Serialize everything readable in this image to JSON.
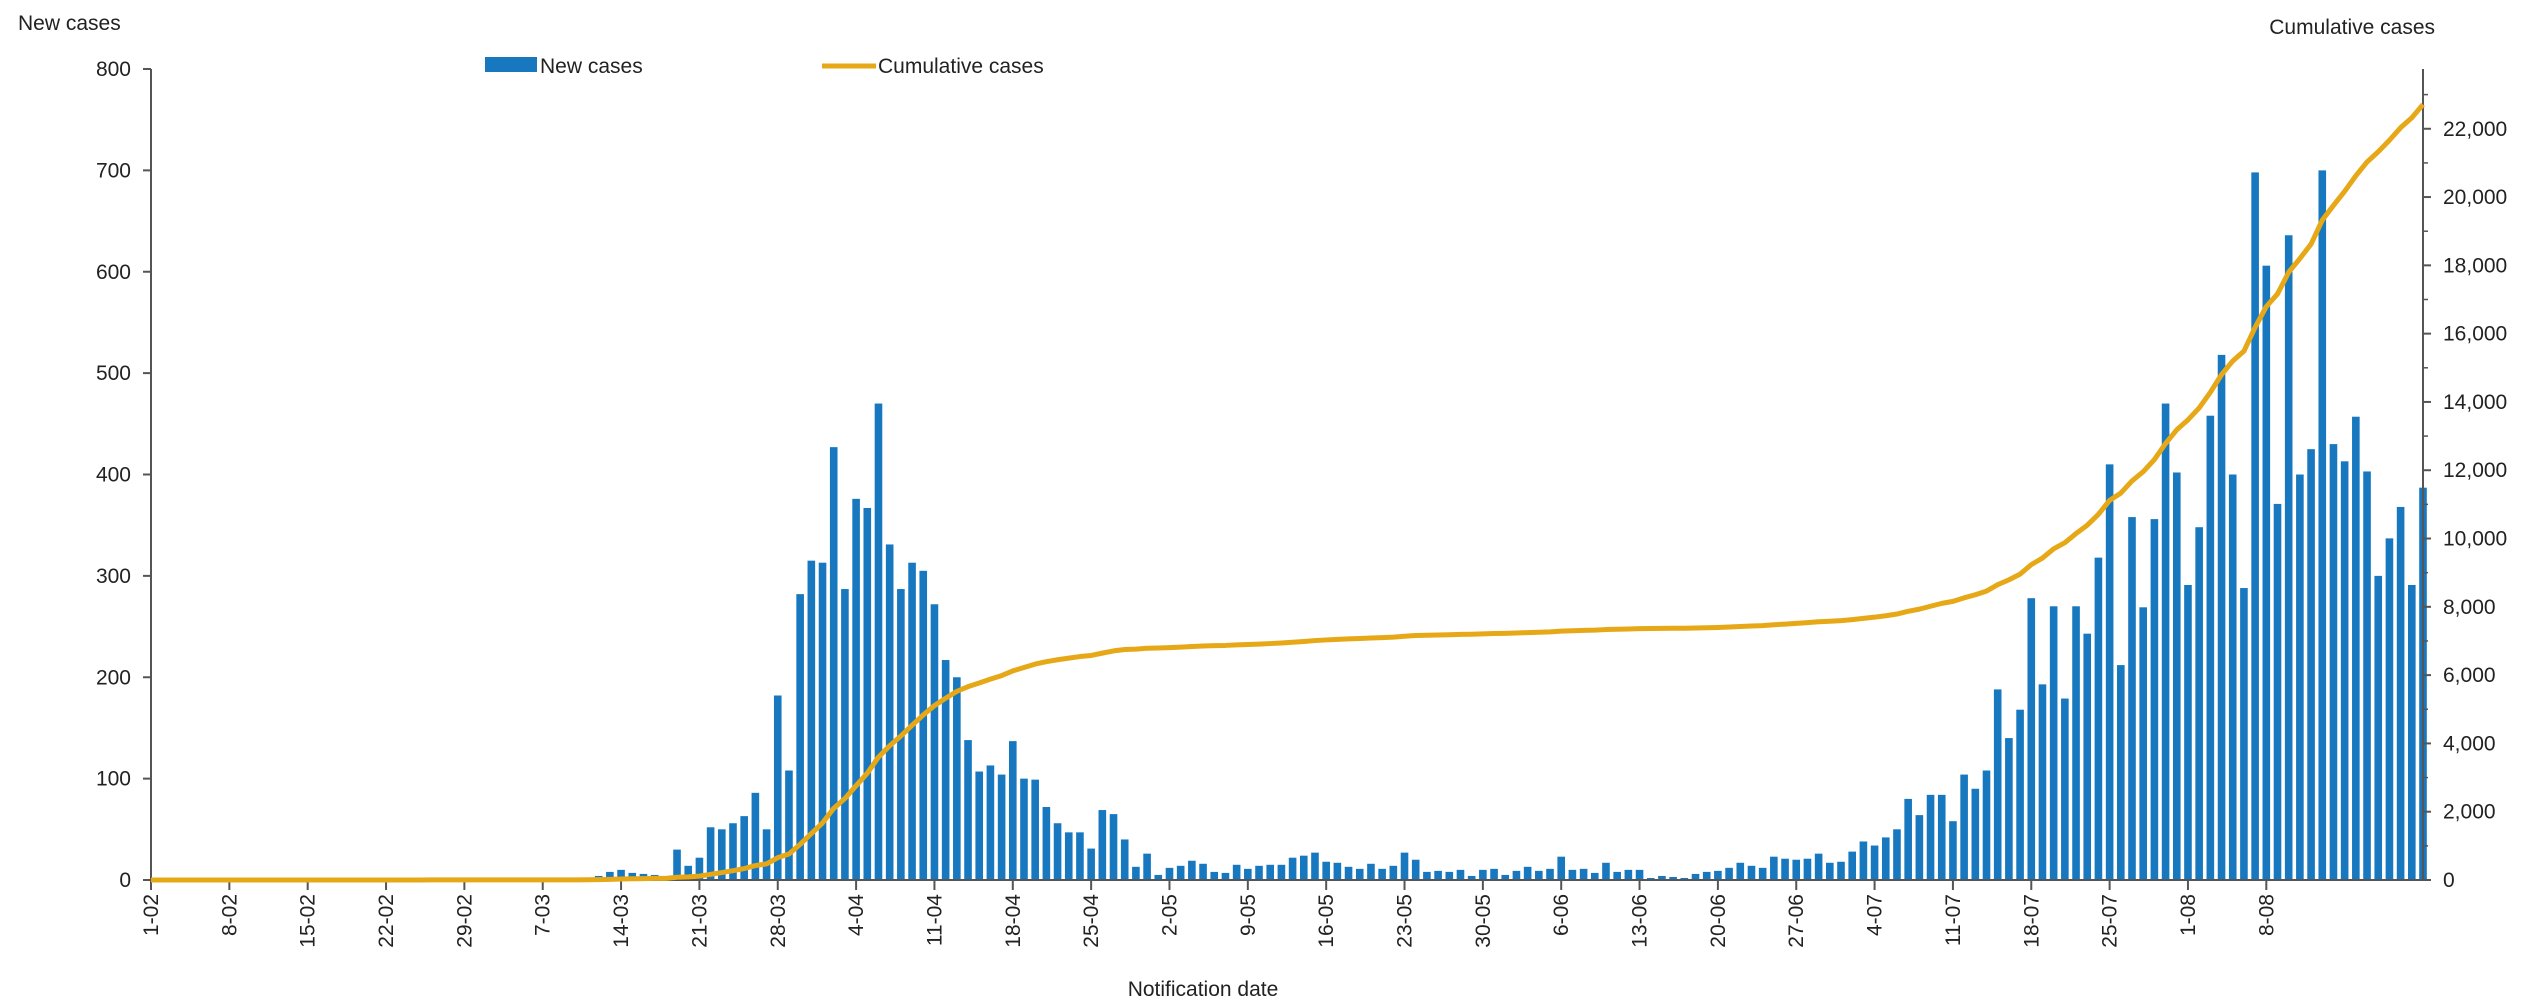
{
  "chart_data": {
    "type": "bar+line",
    "title": "",
    "xlabel": "Notification date",
    "ylabel_left": "New cases",
    "ylabel_right": "Cumulative cases",
    "ylim_left": [
      0,
      800
    ],
    "ylim_right": [
      0,
      23750
    ],
    "yticks_left": [
      "0",
      "100",
      "200",
      "300",
      "400",
      "500",
      "600",
      "700",
      "800"
    ],
    "yticks_right": [
      "0",
      "2,000",
      "4,000",
      "6,000",
      "8,000",
      "10,000",
      "12,000",
      "14,000",
      "16,000",
      "18,000",
      "20,000",
      "22,000"
    ],
    "x_tick_labels": [
      "1-02",
      "8-02",
      "15-02",
      "22-02",
      "29-02",
      "7-03",
      "14-03",
      "21-03",
      "28-03",
      "4-04",
      "11-04",
      "18-04",
      "25-04",
      "2-05",
      "9-05",
      "16-05",
      "23-05",
      "30-05",
      "6-06",
      "13-06",
      "20-06",
      "27-06",
      "4-07",
      "11-07",
      "18-07",
      "25-07",
      "1-08",
      "8-08"
    ],
    "x_start": "2020-02-01",
    "x_end": "2020-08-14",
    "grid": false,
    "legend": {
      "placement": "top-center",
      "entries": [
        "New cases",
        "Cumulative cases"
      ]
    },
    "colors": {
      "bar": "#1878bf",
      "line": "#e6a817",
      "axis": "#555555"
    },
    "series": [
      {
        "name": "New cases",
        "type": "bar",
        "axis": "left",
        "values": [
          0,
          0,
          0,
          0,
          0,
          0,
          0,
          0,
          0,
          0,
          0,
          0,
          0,
          0,
          0,
          0,
          0,
          0,
          0,
          0,
          0,
          0,
          0,
          0,
          0,
          2,
          0,
          0,
          0,
          0,
          0,
          0,
          0,
          0,
          0,
          0,
          0,
          1,
          1,
          2,
          4,
          8,
          10,
          7,
          6,
          5,
          3,
          30,
          14,
          22,
          52,
          50,
          56,
          63,
          86,
          50,
          182,
          108,
          282,
          315,
          313,
          427,
          287,
          376,
          367,
          470,
          331,
          287,
          313,
          305,
          272,
          217,
          200,
          138,
          107,
          113,
          104,
          137,
          100,
          99,
          72,
          56,
          47,
          47,
          31,
          69,
          65,
          40,
          13,
          26,
          5,
          12,
          14,
          19,
          16,
          8,
          7,
          15,
          11,
          14,
          15,
          15,
          22,
          24,
          27,
          18,
          17,
          13,
          11,
          16,
          11,
          14,
          27,
          20,
          8,
          9,
          8,
          10,
          4,
          10,
          11,
          5,
          9,
          13,
          9,
          11,
          23,
          10,
          11,
          7,
          17,
          8,
          10,
          10,
          2,
          4,
          3,
          2,
          6,
          8,
          9,
          12,
          17,
          14,
          12,
          23,
          21,
          20,
          21,
          26,
          17,
          18,
          28,
          38,
          34,
          42,
          50,
          80,
          64,
          84,
          84,
          58,
          104,
          90,
          108,
          188,
          140,
          168,
          278,
          193,
          270,
          179,
          270,
          243,
          318,
          410,
          212,
          358,
          269,
          356,
          470,
          402,
          291,
          348,
          458,
          518,
          400,
          288,
          698,
          606,
          371,
          636,
          400,
          425,
          700,
          430,
          413,
          457,
          403,
          300,
          337,
          368,
          291,
          387
        ]
      },
      {
        "name": "Cumulative cases",
        "type": "line",
        "axis": "right",
        "values": [
          0,
          0,
          0,
          0,
          0,
          0,
          0,
          0,
          0,
          0,
          0,
          0,
          0,
          0,
          0,
          0,
          0,
          0,
          0,
          0,
          0,
          0,
          0,
          0,
          0,
          2,
          2,
          2,
          2,
          2,
          2,
          2,
          2,
          2,
          2,
          2,
          2,
          3,
          4,
          6,
          10,
          18,
          28,
          35,
          41,
          46,
          49,
          79,
          93,
          115,
          167,
          217,
          273,
          336,
          422,
          472,
          654,
          762,
          1044,
          1359,
          1672,
          2099,
          2386,
          2762,
          3129,
          3599,
          3930,
          4217,
          4530,
          4835,
          5107,
          5324,
          5524,
          5662,
          5769,
          5882,
          5986,
          6123,
          6223,
          6322,
          6394,
          6450,
          6497,
          6544,
          6575,
          6644,
          6709,
          6749,
          6762,
          6788,
          6793,
          6805,
          6819,
          6838,
          6854,
          6862,
          6869,
          6884,
          6895,
          6909,
          6924,
          6939,
          6961,
          6985,
          7012,
          7030,
          7047,
          7060,
          7071,
          7087,
          7098,
          7112,
          7139,
          7159,
          7167,
          7176,
          7184,
          7194,
          7198,
          7208,
          7219,
          7224,
          7233,
          7246,
          7255,
          7266,
          7289,
          7299,
          7310,
          7317,
          7334,
          7342,
          7352,
          7362,
          7364,
          7368,
          7371,
          7373,
          7379,
          7387,
          7396,
          7408,
          7425,
          7439,
          7451,
          7474,
          7495,
          7515,
          7536,
          7562,
          7579,
          7597,
          7625,
          7663,
          7697,
          7739,
          7789,
          7869,
          7933,
          8017,
          8101,
          8159,
          8263,
          8353,
          8461,
          8649,
          8789,
          8957,
          9235,
          9428,
          9698,
          9877,
          10147,
          10390,
          10708,
          11118,
          11330,
          11688,
          11957,
          12313,
          12783,
          13185,
          13476,
          13824,
          14282,
          14800,
          15200,
          15488,
          16186,
          16792,
          17163,
          17799,
          18199,
          18624,
          19324,
          19754,
          20167,
          20624,
          21027,
          21327,
          21664,
          22032,
          22323,
          22710
        ]
      }
    ]
  }
}
